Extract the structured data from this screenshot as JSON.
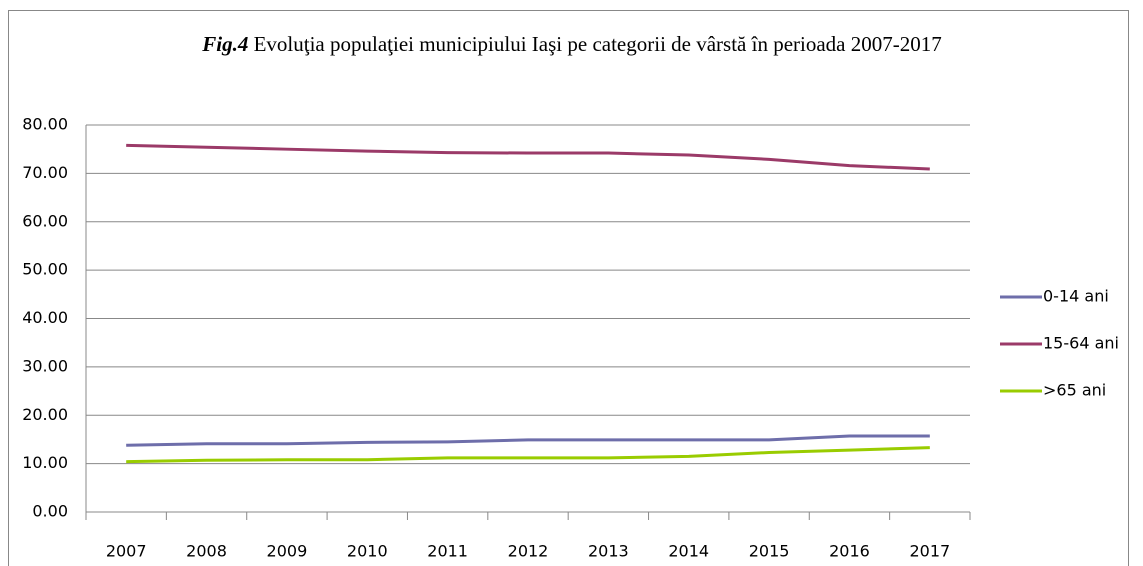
{
  "chart_data": {
    "type": "line",
    "figure_label": "Fig.4",
    "title": "Evoluţia populaţiei municipiului Iaşi pe categorii de vârstă în perioada 2007-2017",
    "categories": [
      "2007",
      "2008",
      "2009",
      "2010",
      "2011",
      "2012",
      "2013",
      "2014",
      "2015",
      "2016",
      "2017"
    ],
    "series": [
      {
        "name": "0-14 ani",
        "color": "#6e6eaa",
        "values": [
          13.8,
          14.1,
          14.1,
          14.4,
          14.5,
          14.9,
          14.9,
          14.9,
          14.9,
          15.7,
          15.7
        ]
      },
      {
        "name": "15-64 ani",
        "color": "#9b3a68",
        "values": [
          75.8,
          75.4,
          75.0,
          74.6,
          74.3,
          74.2,
          74.2,
          73.8,
          72.9,
          71.6,
          70.9
        ]
      },
      {
        "name": ">65 ani",
        "color": "#99cc00",
        "values": [
          10.4,
          10.7,
          10.8,
          10.8,
          11.2,
          11.2,
          11.2,
          11.5,
          12.3,
          12.8,
          13.3
        ]
      }
    ],
    "ylim": [
      0,
      80
    ],
    "yticks": [
      {
        "value": 0,
        "label": "0.00"
      },
      {
        "value": 10,
        "label": "10.00"
      },
      {
        "value": 20,
        "label": "20.00"
      },
      {
        "value": 30,
        "label": "30.00"
      },
      {
        "value": 40,
        "label": "40.00"
      },
      {
        "value": 50,
        "label": "50.00"
      },
      {
        "value": 60,
        "label": "60.00"
      },
      {
        "value": 70,
        "label": "70.00"
      },
      {
        "value": 80,
        "label": "80.00"
      }
    ],
    "grid": true,
    "legend": "right"
  }
}
